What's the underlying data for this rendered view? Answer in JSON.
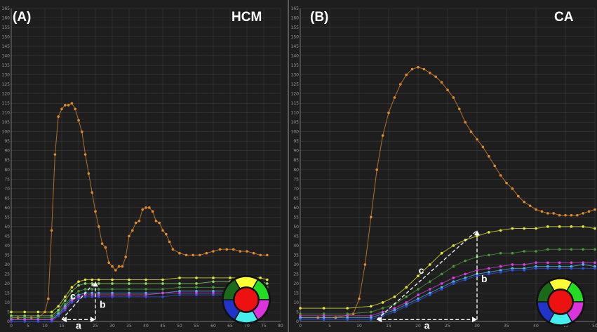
{
  "colors": {
    "orange": "#e08a2c",
    "yellow": "#e8e83a",
    "lightgreen": "#8fd46a",
    "green": "#4a9a3a",
    "magenta": "#e040e0",
    "cyan": "#50b8e8",
    "blue": "#3050e0",
    "annotation": "#ffffff"
  },
  "bullseye_colors": {
    "ring": [
      "#ffff33",
      "#22dd22",
      "#dd33dd",
      "#44eeee",
      "#2233cc",
      "#1a6a1a"
    ],
    "center": "#ee1111"
  },
  "annotations": {
    "a": "a",
    "b": "b",
    "c": "c"
  },
  "chart_data": [
    {
      "type": "line",
      "panel_label": "(A)",
      "title": "HCM",
      "ylim": [
        0,
        165
      ],
      "xlim": [
        0,
        80
      ],
      "grid": true,
      "x_ticks": [
        0,
        5,
        10,
        15,
        20,
        25,
        30,
        35,
        40,
        45,
        50,
        55,
        60,
        65,
        70,
        75,
        80
      ],
      "y_ticks": [
        0,
        5,
        10,
        15,
        20,
        25,
        30,
        35,
        40,
        45,
        50,
        55,
        60,
        65,
        70,
        75,
        80,
        85,
        90,
        95,
        100,
        105,
        110,
        115,
        120,
        125,
        130,
        135,
        140,
        145,
        150,
        155,
        160,
        165
      ],
      "series": [
        {
          "color": "orange",
          "x": [
            0,
            2,
            4,
            6,
            8,
            10,
            11,
            12,
            13,
            14,
            15,
            16,
            17,
            18,
            19,
            20,
            21,
            22,
            23,
            24,
            25,
            26,
            27,
            28,
            29,
            30,
            31,
            32,
            33,
            34,
            35,
            36,
            37,
            38,
            39,
            40,
            41,
            42,
            43,
            44,
            45,
            46,
            47,
            48,
            50,
            52,
            54,
            56,
            58,
            60,
            62,
            64,
            66,
            68,
            70,
            72,
            74,
            76
          ],
          "y": [
            2,
            2,
            2,
            2,
            2,
            5,
            12,
            48,
            88,
            108,
            112,
            114,
            114,
            115,
            112,
            106,
            100,
            88,
            78,
            68,
            58,
            50,
            41,
            39,
            31,
            29,
            27,
            29,
            29,
            34,
            45,
            48,
            52,
            53,
            59,
            60,
            60,
            58,
            53,
            52,
            48,
            46,
            42,
            38,
            36,
            35,
            35,
            35,
            36,
            37,
            38,
            38,
            38,
            37,
            37,
            36,
            35,
            35
          ]
        },
        {
          "color": "yellow",
          "x": [
            0,
            4,
            8,
            12,
            14,
            16,
            18,
            20,
            22,
            24,
            26,
            30,
            35,
            40,
            45,
            50,
            55,
            60,
            65,
            70,
            74,
            76
          ],
          "y": [
            5,
            5,
            5,
            5,
            8,
            13,
            18,
            21,
            22,
            22,
            22,
            22,
            22,
            22,
            22,
            23,
            23,
            23,
            23,
            23,
            23,
            22
          ]
        },
        {
          "color": "lightgreen",
          "x": [
            0,
            4,
            8,
            12,
            14,
            16,
            18,
            20,
            22,
            24,
            26,
            30,
            35,
            40,
            45,
            50,
            55,
            60,
            65,
            70,
            74,
            76
          ],
          "y": [
            3,
            3,
            3,
            3,
            6,
            11,
            16,
            19,
            20,
            20,
            20,
            20,
            20,
            20,
            20,
            20,
            20,
            21,
            21,
            21,
            21,
            20
          ]
        },
        {
          "color": "green",
          "x": [
            0,
            4,
            8,
            12,
            14,
            16,
            18,
            20,
            22,
            24,
            26,
            30,
            35,
            40,
            45,
            50,
            55,
            60,
            65,
            70,
            74,
            76
          ],
          "y": [
            2,
            2,
            2,
            2,
            5,
            9,
            13,
            16,
            17,
            17,
            17,
            17,
            17,
            17,
            17,
            18,
            18,
            18,
            18,
            18,
            18,
            18
          ]
        },
        {
          "color": "cyan",
          "x": [
            0,
            4,
            8,
            12,
            14,
            16,
            18,
            20,
            22,
            24,
            26,
            30,
            35,
            40,
            45,
            50,
            55,
            60,
            65,
            70,
            74,
            76
          ],
          "y": [
            1,
            1,
            1,
            1,
            4,
            8,
            12,
            14,
            15,
            15,
            15,
            15,
            15,
            15,
            15,
            16,
            16,
            16,
            16,
            16,
            16,
            16
          ]
        },
        {
          "color": "magenta",
          "x": [
            0,
            4,
            8,
            12,
            14,
            16,
            18,
            20,
            22,
            24,
            26,
            30,
            35,
            40,
            45,
            50,
            55,
            60,
            65,
            70,
            74,
            76
          ],
          "y": [
            1,
            1,
            1,
            1,
            3,
            7,
            11,
            13,
            14,
            14,
            14,
            14,
            14,
            14,
            15,
            15,
            15,
            15,
            15,
            15,
            15,
            15
          ]
        },
        {
          "color": "blue",
          "x": [
            0,
            4,
            8,
            12,
            14,
            16,
            18,
            20,
            22,
            24,
            26,
            30,
            35,
            40,
            45,
            50,
            55,
            60,
            65,
            70,
            74,
            76
          ],
          "y": [
            0,
            0,
            0,
            0,
            3,
            6,
            10,
            12,
            13,
            13,
            13,
            13,
            13,
            13,
            13,
            14,
            14,
            14,
            14,
            14,
            14,
            14
          ]
        }
      ],
      "slope_annotation": {
        "x0": 15,
        "y0": 1,
        "x1": 25,
        "y1": 21
      }
    },
    {
      "type": "line",
      "panel_label": "(B)",
      "title": "CA",
      "ylim": [
        0,
        165
      ],
      "xlim": [
        0,
        50
      ],
      "grid": true,
      "x_ticks": [
        0,
        5,
        10,
        15,
        20,
        25,
        30,
        35,
        40,
        45,
        50
      ],
      "y_ticks": [
        0,
        5,
        10,
        15,
        20,
        25,
        30,
        35,
        40,
        45,
        50,
        55,
        60,
        65,
        70,
        75,
        80,
        85,
        90,
        95,
        100,
        105,
        110,
        115,
        120,
        125,
        130,
        135,
        140,
        145,
        150,
        155,
        160,
        165
      ],
      "series": [
        {
          "color": "orange",
          "x": [
            0,
            3,
            6,
            9,
            10,
            11,
            12,
            13,
            14,
            15,
            16,
            17,
            18,
            19,
            20,
            21,
            22,
            23,
            24,
            25,
            26,
            27,
            28,
            29,
            30,
            31,
            32,
            33,
            34,
            35,
            36,
            37,
            38,
            39,
            40,
            41,
            42,
            43,
            44,
            45,
            46,
            47,
            48,
            49,
            50
          ],
          "y": [
            2,
            2,
            2,
            4,
            12,
            30,
            55,
            80,
            98,
            110,
            118,
            125,
            130,
            133,
            134,
            133,
            131,
            129,
            126,
            122,
            118,
            112,
            105,
            100,
            96,
            92,
            87,
            82,
            77,
            73,
            70,
            66,
            63,
            61,
            59,
            58,
            57,
            57,
            56,
            56,
            56,
            56,
            57,
            58,
            59
          ]
        },
        {
          "color": "yellow",
          "x": [
            0,
            4,
            8,
            12,
            14,
            16,
            18,
            20,
            22,
            24,
            26,
            28,
            30,
            32,
            34,
            36,
            38,
            40,
            42,
            44,
            46,
            48,
            50
          ],
          "y": [
            7,
            7,
            7,
            8,
            10,
            13,
            18,
            24,
            30,
            36,
            40,
            43,
            45,
            47,
            48,
            49,
            49,
            49,
            50,
            50,
            50,
            50,
            49
          ]
        },
        {
          "color": "green",
          "x": [
            0,
            4,
            8,
            12,
            14,
            16,
            18,
            20,
            22,
            24,
            26,
            28,
            30,
            32,
            34,
            36,
            38,
            40,
            42,
            44,
            46,
            48,
            50
          ],
          "y": [
            4,
            4,
            4,
            5,
            7,
            9,
            13,
            17,
            21,
            25,
            29,
            32,
            34,
            35,
            36,
            36,
            37,
            37,
            38,
            38,
            38,
            38,
            38
          ]
        },
        {
          "color": "magenta",
          "x": [
            0,
            4,
            8,
            12,
            14,
            16,
            18,
            20,
            22,
            24,
            26,
            28,
            30,
            32,
            34,
            36,
            38,
            40,
            42,
            44,
            46,
            48,
            50
          ],
          "y": [
            3,
            3,
            3,
            3,
            5,
            7,
            10,
            14,
            17,
            20,
            23,
            25,
            27,
            28,
            29,
            30,
            30,
            31,
            31,
            31,
            31,
            31,
            31
          ]
        },
        {
          "color": "cyan",
          "x": [
            0,
            4,
            8,
            12,
            14,
            16,
            18,
            20,
            22,
            24,
            26,
            28,
            30,
            32,
            34,
            36,
            38,
            40,
            42,
            44,
            46,
            48,
            50
          ],
          "y": [
            2,
            2,
            2,
            2,
            4,
            6,
            9,
            12,
            15,
            18,
            21,
            23,
            25,
            26,
            27,
            28,
            28,
            29,
            29,
            29,
            29,
            30,
            29
          ]
        },
        {
          "color": "blue",
          "x": [
            0,
            4,
            8,
            12,
            14,
            16,
            18,
            20,
            22,
            24,
            26,
            28,
            30,
            32,
            34,
            36,
            38,
            40,
            42,
            44,
            46,
            48,
            50
          ],
          "y": [
            1,
            1,
            1,
            1,
            3,
            5,
            8,
            11,
            14,
            17,
            20,
            22,
            24,
            25,
            26,
            27,
            27,
            28,
            28,
            28,
            28,
            28,
            28
          ]
        }
      ],
      "slope_annotation": {
        "x0": 13,
        "y0": 1,
        "x1": 30,
        "y1": 48
      }
    }
  ]
}
